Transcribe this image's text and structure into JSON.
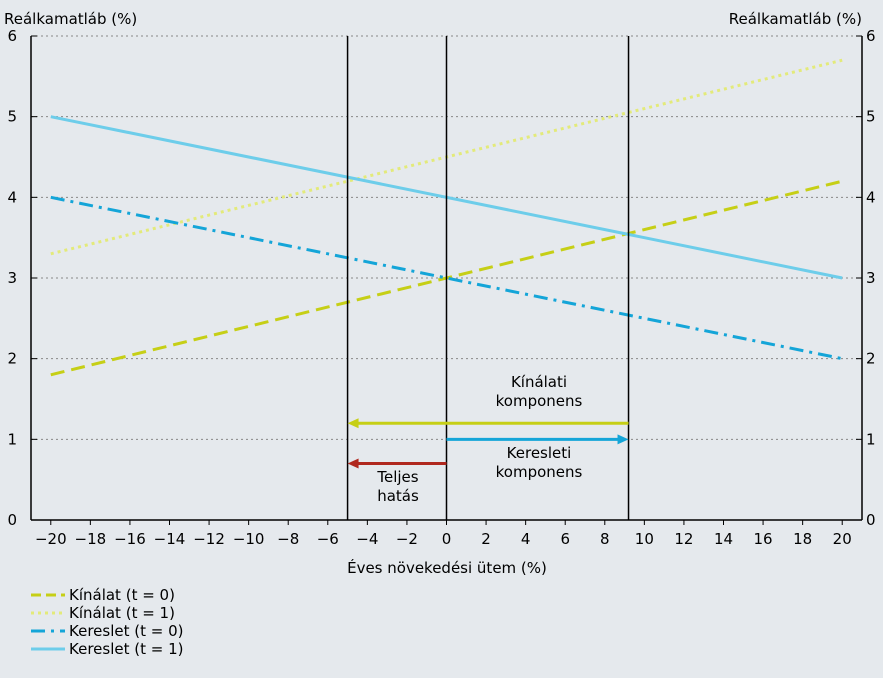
{
  "chart_data": {
    "type": "line",
    "xlabel": "Éves növekedési ütem (%)",
    "ylabel_left": "Reálkamatláb (%)",
    "ylabel_right": "Reálkamatláb (%)",
    "xlim": [
      -21,
      21
    ],
    "ylim": [
      0,
      6
    ],
    "xticks": [
      -20,
      -18,
      -16,
      -14,
      -12,
      -10,
      -8,
      -6,
      -4,
      -2,
      0,
      2,
      4,
      6,
      8,
      10,
      12,
      14,
      16,
      18,
      20
    ],
    "yticks": [
      0,
      1,
      2,
      3,
      4,
      5,
      6
    ],
    "grid": "horizontal dotted",
    "series": [
      {
        "name": "Kínálat (t = 0)",
        "color": "#c6cf16",
        "dash": "long-dash",
        "x": [
          -20,
          20
        ],
        "y": [
          1.8,
          4.2
        ]
      },
      {
        "name": "Kínálat  (t = 1)",
        "color": "#e3ea7a",
        "dash": "dotted",
        "x": [
          -20,
          20
        ],
        "y": [
          3.3,
          5.7
        ]
      },
      {
        "name": "Kereslet (t = 0)",
        "color": "#14a5d8",
        "dash": "dash-dot",
        "x": [
          -20,
          20
        ],
        "y": [
          4.0,
          2.0
        ]
      },
      {
        "name": "Kereslet  (t = 1)",
        "color": "#6dcdea",
        "dash": "solid",
        "x": [
          -20,
          20
        ],
        "y": [
          5.0,
          3.0
        ]
      }
    ],
    "vlines": [
      -5,
      0,
      9.2
    ],
    "arrows": [
      {
        "from": 9.2,
        "to": -5,
        "y": 1.2,
        "color": "#c6cf16",
        "label": [
          "Kínálati",
          "komponens"
        ]
      },
      {
        "from": 0,
        "to": 9.2,
        "y": 1.0,
        "color": "#14a5d8",
        "label": [
          "Keresleti",
          "komponens"
        ]
      },
      {
        "from": 0,
        "to": -5,
        "y": 0.7,
        "color": "#b0281e",
        "label": [
          "Teljes",
          "hatás"
        ]
      }
    ]
  }
}
